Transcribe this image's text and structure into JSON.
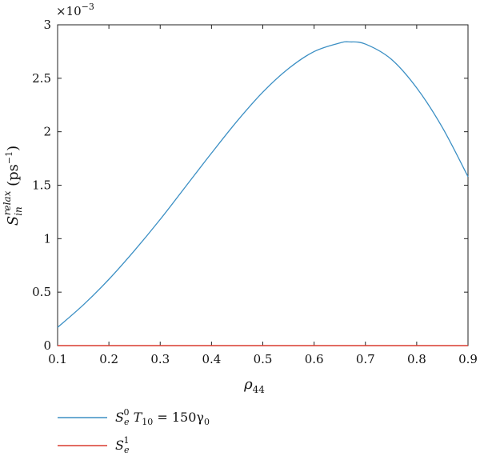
{
  "chart_data": {
    "type": "line",
    "x": [
      0.1,
      0.15,
      0.2,
      0.25,
      0.3,
      0.35,
      0.4,
      0.45,
      0.5,
      0.55,
      0.6,
      0.65,
      0.67,
      0.7,
      0.75,
      0.8,
      0.85,
      0.9
    ],
    "series": [
      {
        "name_parts": [
          "S",
          "e",
          "0",
          " T",
          "10",
          " = 150γ",
          "0"
        ],
        "color": "#3b8fc4",
        "values": [
          0.17,
          0.38,
          0.62,
          0.89,
          1.18,
          1.49,
          1.8,
          2.1,
          2.37,
          2.59,
          2.75,
          2.83,
          2.84,
          2.82,
          2.68,
          2.41,
          2.04,
          1.58
        ]
      },
      {
        "name_parts": [
          "S",
          "e",
          "1"
        ],
        "color": "#d93a2f",
        "values": [
          0,
          0,
          0,
          0,
          0,
          0,
          0,
          0,
          0,
          0,
          0,
          0,
          0,
          0,
          0,
          0,
          0,
          0
        ]
      }
    ],
    "xlim": [
      0.1,
      0.9
    ],
    "ylim": [
      0,
      3
    ],
    "xticks": [
      "0.1",
      "0.2",
      "0.3",
      "0.4",
      "0.5",
      "0.6",
      "0.7",
      "0.8",
      "0.9"
    ],
    "yticks": [
      "0",
      "0.5",
      "1",
      "1.5",
      "2",
      "2.5",
      "3"
    ],
    "ylabel_parts": [
      "S",
      "in",
      "relax",
      " (ps",
      "−1",
      ")"
    ],
    "xlabel_parts": [
      "ρ",
      "44"
    ],
    "scale_parts": [
      "×10",
      "−3"
    ],
    "grid": false,
    "legend_position": "below"
  }
}
